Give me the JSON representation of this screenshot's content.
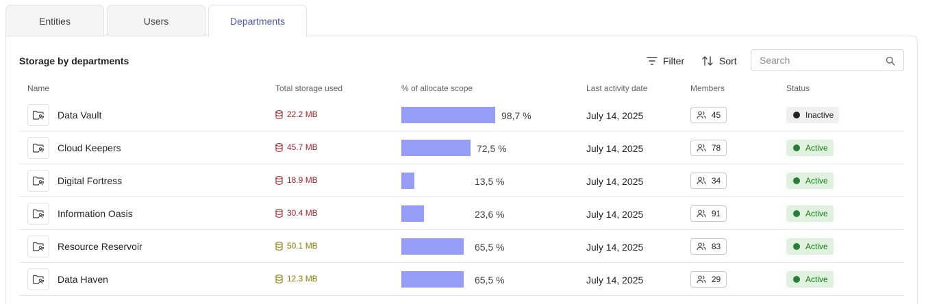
{
  "tabs": [
    {
      "label": "Entities"
    },
    {
      "label": "Users"
    },
    {
      "label": "Departments"
    }
  ],
  "panel": {
    "title": "Storage by departments",
    "filter_label": "Filter",
    "sort_label": "Sort",
    "search_placeholder": "Search"
  },
  "columns": {
    "name": "Name",
    "storage": "Total storage used",
    "scope": "% of allocate scope",
    "activity": "Last activity date",
    "members": "Members",
    "status": "Status"
  },
  "colors": {
    "storage_red": "#a4262c",
    "storage_yellow": "#8f7a00",
    "bar": "#959df6",
    "accent": "#4f52b2"
  },
  "rows": [
    {
      "name": "Data Vault",
      "storage": "22.2 MB",
      "storage_level": "red",
      "percent": 98.7,
      "percent_text": "98,7 %",
      "date": "July 14, 2025",
      "members": "45",
      "status": "Inactive"
    },
    {
      "name": "Cloud Keepers",
      "storage": "45.7 MB",
      "storage_level": "red",
      "percent": 72.5,
      "percent_text": "72,5 %",
      "date": "July 14, 2025",
      "members": "78",
      "status": "Active"
    },
    {
      "name": "Digital Fortress",
      "storage": "18.9 MB",
      "storage_level": "red",
      "percent": 13.5,
      "percent_text": "13,5 %",
      "date": "July 14, 2025",
      "members": "34",
      "status": "Active"
    },
    {
      "name": "Information Oasis",
      "storage": "30.4 MB",
      "storage_level": "red",
      "percent": 23.6,
      "percent_text": "23,6 %",
      "date": "July 14, 2025",
      "members": "91",
      "status": "Active"
    },
    {
      "name": "Resource Reservoir",
      "storage": "50.1 MB",
      "storage_level": "yellow",
      "percent": 65.5,
      "percent_text": "65,5 %",
      "date": "July 14, 2025",
      "members": "83",
      "status": "Active"
    },
    {
      "name": "Data Haven",
      "storage": "12.3 MB",
      "storage_level": "yellow",
      "percent": 65.5,
      "percent_text": "65,5 %",
      "date": "July 14, 2025",
      "members": "29",
      "status": "Active"
    }
  ]
}
